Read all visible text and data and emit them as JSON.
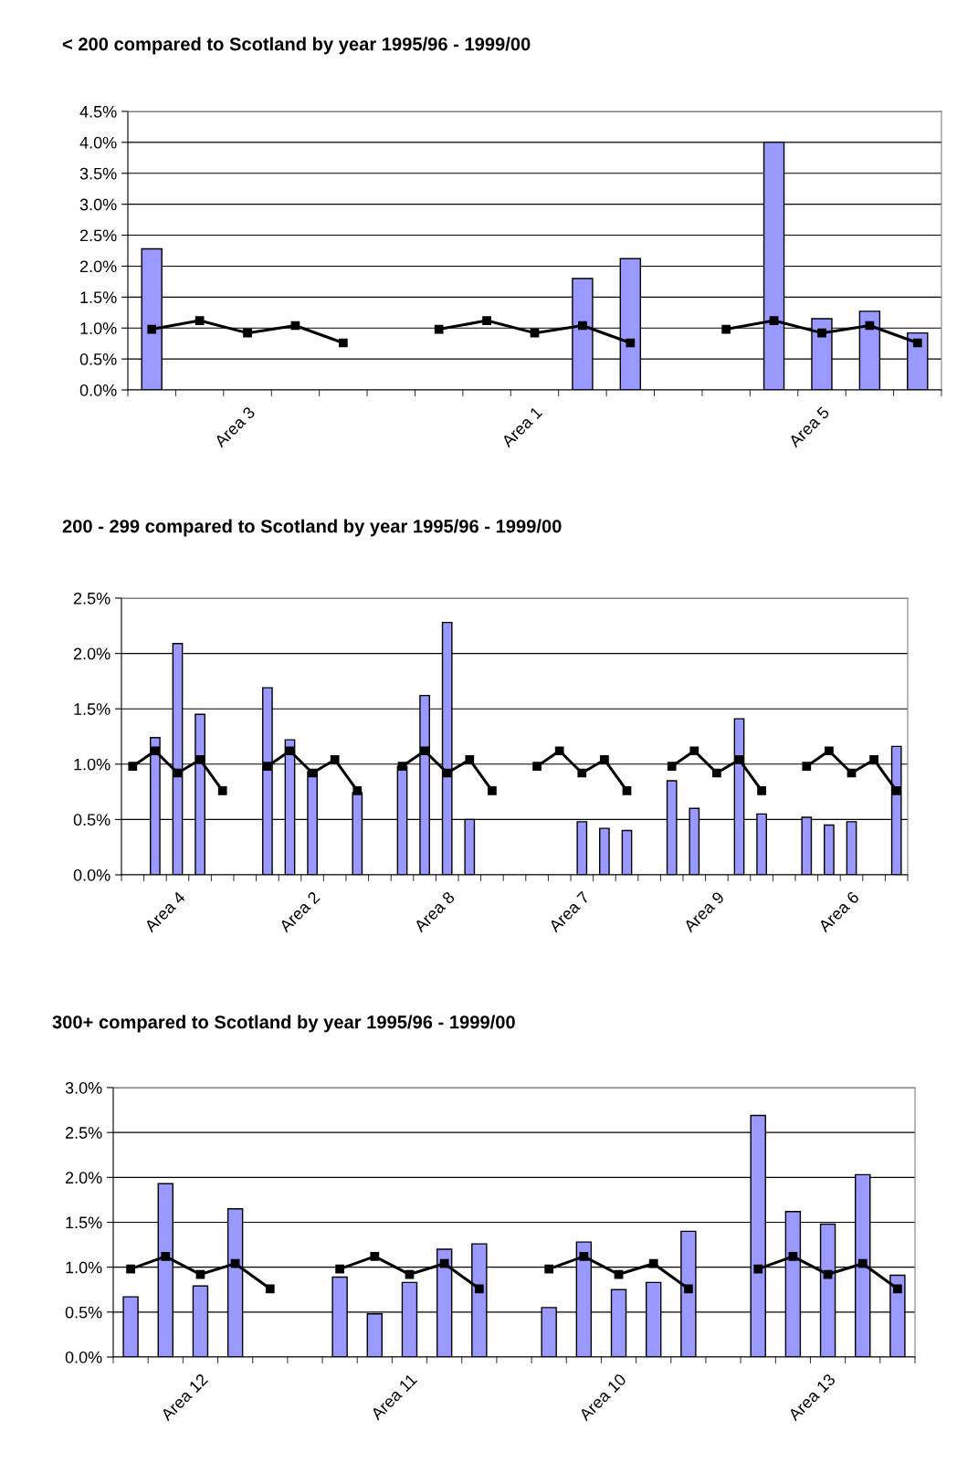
{
  "chart_data": [
    {
      "type": "bar",
      "title": "< 200 compared to Scotland by year 1995/96 - 1999/00",
      "categories": [
        null,
        null,
        "Area 3",
        null,
        null,
        null,
        null,
        null,
        "Area 1",
        null,
        null,
        null,
        null,
        null,
        "Area 5",
        null,
        null
      ],
      "series": [
        {
          "color": "#9999ff",
          "values": [
            2.28,
            null,
            null,
            null,
            null,
            null,
            null,
            null,
            null,
            1.8,
            2.12,
            null,
            null,
            4.0,
            1.15,
            1.27,
            0.92
          ]
        },
        {
          "type": "line",
          "color": "#000000",
          "marker": "square",
          "values": [
            0.98,
            1.12,
            0.92,
            1.04,
            0.76,
            null,
            0.98,
            1.12,
            0.92,
            1.04,
            0.76,
            null,
            0.98,
            1.12,
            0.92,
            1.04,
            0.76
          ]
        }
      ],
      "ylim": [
        0,
        4.5
      ],
      "yticks": [
        {
          "value": 0,
          "label": "0.0%"
        },
        {
          "value": 0.5,
          "label": "0.5%"
        },
        {
          "value": 1.0,
          "label": "1.0%"
        },
        {
          "value": 1.5,
          "label": "1.5%"
        },
        {
          "value": 2.0,
          "label": "2.0%"
        },
        {
          "value": 2.5,
          "label": "2.5%"
        },
        {
          "value": 3.0,
          "label": "3.0%"
        },
        {
          "value": 3.5,
          "label": "3.5%"
        },
        {
          "value": 4.0,
          "label": "4.0%"
        },
        {
          "value": 4.5,
          "label": "4.5%"
        }
      ],
      "grid": "y"
    },
    {
      "type": "bar",
      "title": "200 - 299 compared to Scotland by year 1995/96 - 1999/00",
      "categories": [
        null,
        null,
        "Area 4",
        null,
        null,
        null,
        null,
        null,
        "Area 2",
        null,
        null,
        null,
        null,
        null,
        "Area 8",
        null,
        null,
        null,
        null,
        null,
        "Area 7",
        null,
        null,
        null,
        null,
        null,
        "Area 9",
        null,
        null,
        null,
        null,
        null,
        "Area 6",
        null,
        null
      ],
      "series": [
        {
          "color": "#9999ff",
          "values": [
            null,
            1.24,
            2.09,
            1.45,
            null,
            null,
            1.69,
            1.22,
            0.93,
            null,
            0.74,
            null,
            0.98,
            1.62,
            2.28,
            0.5,
            null,
            null,
            null,
            null,
            0.48,
            0.42,
            0.4,
            null,
            0.85,
            0.6,
            null,
            1.41,
            0.55,
            null,
            0.52,
            0.45,
            0.48,
            null,
            1.16
          ]
        },
        {
          "type": "line",
          "color": "#000000",
          "marker": "square",
          "values": [
            0.98,
            1.12,
            0.92,
            1.04,
            0.76,
            null,
            0.98,
            1.12,
            0.92,
            1.04,
            0.76,
            null,
            0.98,
            1.12,
            0.92,
            1.04,
            0.76,
            null,
            0.98,
            1.12,
            0.92,
            1.04,
            0.76,
            null,
            0.98,
            1.12,
            0.92,
            1.04,
            0.76,
            null,
            0.98,
            1.12,
            0.92,
            1.04,
            0.76
          ]
        }
      ],
      "ylim": [
        0,
        2.5
      ],
      "yticks": [
        {
          "value": 0,
          "label": "0.0%"
        },
        {
          "value": 0.5,
          "label": "0.5%"
        },
        {
          "value": 1.0,
          "label": "1.0%"
        },
        {
          "value": 1.5,
          "label": "1.5%"
        },
        {
          "value": 2.0,
          "label": "2.0%"
        },
        {
          "value": 2.5,
          "label": "2.5%"
        }
      ],
      "grid": "y"
    },
    {
      "type": "bar",
      "title": "300+ compared to Scotland by year 1995/96 - 1999/00",
      "categories": [
        null,
        null,
        "Area 12",
        null,
        null,
        null,
        null,
        null,
        "Area 11",
        null,
        null,
        null,
        null,
        null,
        "Area 10",
        null,
        null,
        null,
        null,
        null,
        "Area 13",
        null,
        null
      ],
      "series": [
        {
          "color": "#9999ff",
          "values": [
            0.67,
            1.93,
            0.79,
            1.65,
            null,
            null,
            0.89,
            0.48,
            0.83,
            1.2,
            1.26,
            null,
            0.55,
            1.28,
            0.75,
            0.83,
            1.4,
            null,
            2.69,
            1.62,
            1.48,
            2.03,
            0.91
          ]
        },
        {
          "type": "line",
          "color": "#000000",
          "marker": "square",
          "values": [
            0.98,
            1.12,
            0.92,
            1.04,
            0.76,
            null,
            0.98,
            1.12,
            0.92,
            1.04,
            0.76,
            null,
            0.98,
            1.12,
            0.92,
            1.04,
            0.76,
            null,
            0.98,
            1.12,
            0.92,
            1.04,
            0.76
          ]
        }
      ],
      "ylim": [
        0,
        3.0
      ],
      "yticks": [
        {
          "value": 0,
          "label": "0.0%"
        },
        {
          "value": 0.5,
          "label": "0.5%"
        },
        {
          "value": 1.0,
          "label": "1.0%"
        },
        {
          "value": 1.5,
          "label": "1.5%"
        },
        {
          "value": 2.0,
          "label": "2.0%"
        },
        {
          "value": 2.5,
          "label": "2.5%"
        },
        {
          "value": 3.0,
          "label": "3.0%"
        }
      ],
      "grid": "y"
    }
  ]
}
